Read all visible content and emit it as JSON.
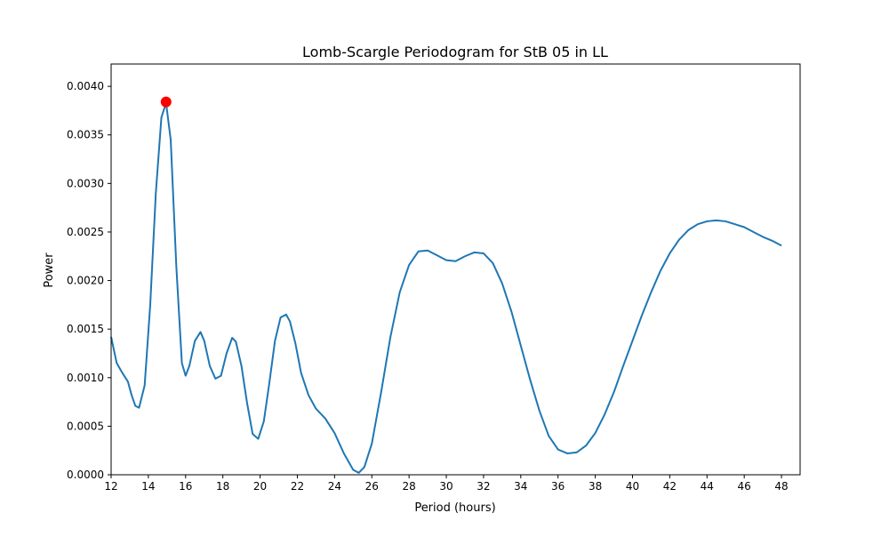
{
  "chart_data": {
    "type": "line",
    "title": "Lomb-Scargle Periodogram for StB 05 in LL",
    "xlabel": "Period (hours)",
    "ylabel": "Power",
    "xlim": [
      12,
      49
    ],
    "ylim": [
      0,
      0.00423
    ],
    "x_ticks": [
      12,
      14,
      16,
      18,
      20,
      22,
      24,
      26,
      28,
      30,
      32,
      34,
      36,
      38,
      40,
      42,
      44,
      46,
      48
    ],
    "y_ticks": [
      0.0,
      0.0005,
      0.001,
      0.0015,
      0.002,
      0.0025,
      0.003,
      0.0035,
      0.004
    ],
    "y_tick_labels": [
      "0.0000",
      "0.0005",
      "0.0010",
      "0.0015",
      "0.0020",
      "0.0025",
      "0.0030",
      "0.0035",
      "0.0040"
    ],
    "grid": false,
    "line_color": "#1f77b4",
    "marker_color": "#ff0000",
    "series": [
      {
        "x": [
          12.0,
          12.3,
          12.6,
          12.9,
          13.1,
          13.3,
          13.5,
          13.8,
          14.1,
          14.4,
          14.7,
          14.95,
          15.2,
          15.5,
          15.8,
          16.0,
          16.2,
          16.5,
          16.8,
          17.0,
          17.3,
          17.6,
          17.9,
          18.2,
          18.5,
          18.7,
          19.0,
          19.3,
          19.6,
          19.9,
          20.2,
          20.5,
          20.8,
          21.1,
          21.4,
          21.6,
          21.9,
          22.2,
          22.6,
          23.0,
          23.5,
          24.0,
          24.5,
          25.0,
          25.3,
          25.6,
          26.0,
          26.5,
          27.0,
          27.5,
          28.0,
          28.5,
          29.0,
          29.5,
          30.0,
          30.5,
          31.0,
          31.5,
          32.0,
          32.5,
          33.0,
          33.5,
          34.0,
          34.5,
          35.0,
          35.5,
          36.0,
          36.5,
          37.0,
          37.5,
          38.0,
          38.5,
          39.0,
          39.5,
          40.0,
          40.5,
          41.0,
          41.5,
          42.0,
          42.5,
          43.0,
          43.5,
          44.0,
          44.5,
          45.0,
          45.5,
          46.0,
          46.5,
          47.0,
          47.5,
          48.0
        ],
        "y": [
          0.00142,
          0.00115,
          0.00105,
          0.00096,
          0.00082,
          0.00071,
          0.00069,
          0.00092,
          0.00175,
          0.0029,
          0.00368,
          0.00383,
          0.00345,
          0.00215,
          0.00115,
          0.00102,
          0.00112,
          0.00138,
          0.00147,
          0.00138,
          0.00112,
          0.00099,
          0.00102,
          0.00125,
          0.00141,
          0.00137,
          0.00112,
          0.00074,
          0.00042,
          0.00037,
          0.00055,
          0.00095,
          0.00138,
          0.00162,
          0.00165,
          0.00158,
          0.00135,
          0.00105,
          0.00082,
          0.00068,
          0.00058,
          0.00043,
          0.00022,
          5e-05,
          2e-05,
          8e-05,
          0.00032,
          0.00085,
          0.00142,
          0.00188,
          0.00216,
          0.0023,
          0.00231,
          0.00226,
          0.00221,
          0.0022,
          0.00225,
          0.00229,
          0.00228,
          0.00218,
          0.00197,
          0.00168,
          0.00133,
          0.00098,
          0.00066,
          0.0004,
          0.00026,
          0.00022,
          0.00023,
          0.0003,
          0.00043,
          0.00062,
          0.00085,
          0.00112,
          0.00138,
          0.00164,
          0.00188,
          0.0021,
          0.00228,
          0.00242,
          0.00252,
          0.00258,
          0.00261,
          0.00262,
          0.00261,
          0.00258,
          0.00255,
          0.0025,
          0.00245,
          0.00241,
          0.00236
        ]
      }
    ],
    "peak_marker": {
      "x": 14.95,
      "y": 0.00384
    }
  }
}
